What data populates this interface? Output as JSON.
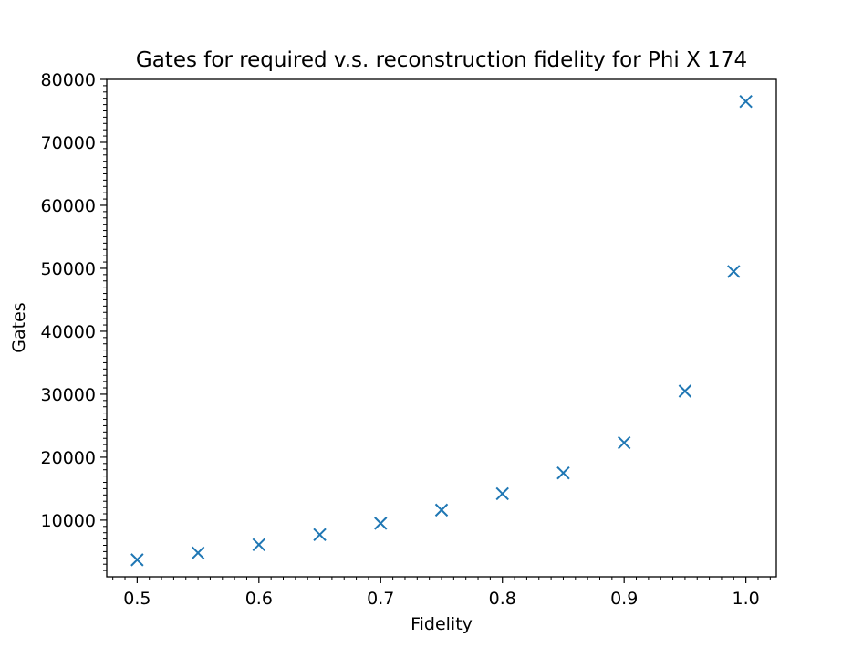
{
  "chart_data": {
    "type": "scatter",
    "title": "Gates for required v.s. reconstruction fidelity for Phi X 174",
    "xlabel": "Fidelity",
    "ylabel": "Gates",
    "xlim": [
      0.475,
      1.025
    ],
    "ylim": [
      1000,
      80000
    ],
    "x_ticks": [
      0.5,
      0.6,
      0.7,
      0.8,
      0.9,
      1.0
    ],
    "x_tick_labels": [
      "0.5",
      "0.6",
      "0.7",
      "0.8",
      "0.9",
      "1.0"
    ],
    "y_ticks": [
      10000,
      20000,
      30000,
      40000,
      50000,
      60000,
      70000,
      80000
    ],
    "y_tick_labels": [
      "10000",
      "20000",
      "30000",
      "40000",
      "50000",
      "60000",
      "70000",
      "80000"
    ],
    "marker": "x",
    "color": "#1f77b4",
    "grid": false,
    "series": [
      {
        "name": "Gates",
        "x": [
          0.5,
          0.55,
          0.6,
          0.65,
          0.7,
          0.75,
          0.8,
          0.85,
          0.9,
          0.95,
          0.99,
          1.0
        ],
        "y": [
          3700,
          4800,
          6100,
          7700,
          9500,
          11600,
          14200,
          17500,
          22300,
          30500,
          49500,
          76500
        ]
      }
    ]
  }
}
